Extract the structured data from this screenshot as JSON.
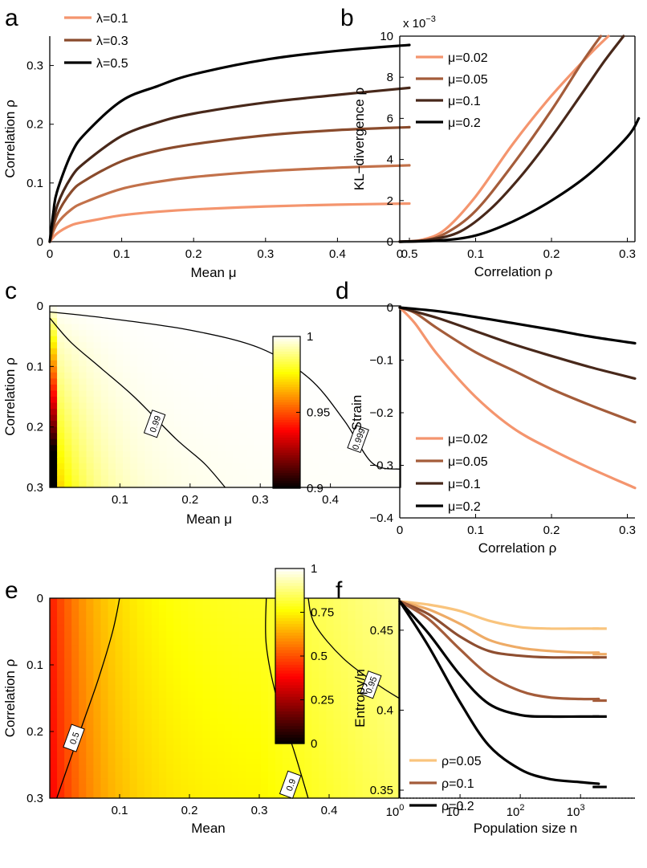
{
  "chart_data": [
    {
      "panel": "a",
      "type": "line",
      "xlabel": "Mean μ",
      "ylabel": "Correlation ρ",
      "xlim": [
        0,
        0.5
      ],
      "ylim": [
        0,
        0.35
      ],
      "xticks": [
        0,
        0.1,
        0.2,
        0.3,
        0.4,
        0.5
      ],
      "xtick_labels": [
        "0",
        "0.1",
        "0.2",
        "0.3",
        "0.4",
        "0.5"
      ],
      "yticks": [
        0,
        0.1,
        0.2,
        0.3
      ],
      "ytick_labels": [
        "0",
        "0.1",
        "0.2",
        "0.3"
      ],
      "legend": "top-left",
      "series": [
        {
          "name": "λ=0.1",
          "color": "#F4956E",
          "x": [
            0,
            0.01,
            0.03,
            0.05,
            0.1,
            0.15,
            0.2,
            0.3,
            0.4,
            0.5
          ],
          "y": [
            0,
            0.014,
            0.028,
            0.034,
            0.045,
            0.051,
            0.055,
            0.06,
            0.063,
            0.065
          ]
        },
        {
          "name": "",
          "color": "#C2714A",
          "x": [
            0,
            0.01,
            0.03,
            0.05,
            0.1,
            0.15,
            0.2,
            0.3,
            0.4,
            0.5
          ],
          "y": [
            0,
            0.03,
            0.055,
            0.068,
            0.09,
            0.102,
            0.11,
            0.12,
            0.126,
            0.13
          ]
        },
        {
          "name": "λ=0.3",
          "color": "#8A4B2C",
          "x": [
            0,
            0.01,
            0.03,
            0.05,
            0.1,
            0.15,
            0.2,
            0.3,
            0.4,
            0.5
          ],
          "y": [
            0,
            0.045,
            0.085,
            0.105,
            0.137,
            0.155,
            0.166,
            0.181,
            0.19,
            0.195
          ]
        },
        {
          "name": "",
          "color": "#48281A",
          "x": [
            0,
            0.01,
            0.03,
            0.05,
            0.1,
            0.15,
            0.2,
            0.3,
            0.4,
            0.5
          ],
          "y": [
            0,
            0.06,
            0.11,
            0.136,
            0.18,
            0.203,
            0.218,
            0.237,
            0.25,
            0.262
          ]
        },
        {
          "name": "λ=0.5",
          "color": "#000000",
          "x": [
            0,
            0.005,
            0.01,
            0.03,
            0.05,
            0.1,
            0.15,
            0.2,
            0.3,
            0.4,
            0.5
          ],
          "y": [
            0,
            0.05,
            0.085,
            0.15,
            0.185,
            0.24,
            0.265,
            0.285,
            0.31,
            0.325,
            0.335
          ]
        }
      ]
    },
    {
      "panel": "b",
      "type": "line",
      "xlabel": "Correlation ρ",
      "ylabel": "KL−divergence ρ",
      "scale_label": "x 10",
      "scale_exp": "−3",
      "xlim": [
        0,
        0.31
      ],
      "ylim": [
        0,
        10
      ],
      "xticks": [
        0,
        0.1,
        0.2,
        0.3
      ],
      "xtick_labels": [
        "0",
        "0.1",
        "0.2",
        "0.3"
      ],
      "yticks": [
        0,
        2,
        4,
        6,
        8,
        10
      ],
      "ytick_labels": [
        "0",
        "2",
        "4",
        "6",
        "8",
        "10"
      ],
      "legend": "top-left",
      "series": [
        {
          "name": "μ=0.02",
          "color": "#F4956E",
          "x": [
            0,
            0.03,
            0.06,
            0.1,
            0.15,
            0.2,
            0.25,
            0.275
          ],
          "y": [
            0,
            0.1,
            0.6,
            2.2,
            4.8,
            7.1,
            9.1,
            10
          ]
        },
        {
          "name": "μ=0.05",
          "color": "#A45C3A",
          "x": [
            0,
            0.03,
            0.06,
            0.1,
            0.15,
            0.2,
            0.24,
            0.265
          ],
          "y": [
            0,
            0.05,
            0.4,
            1.5,
            3.8,
            6.4,
            8.7,
            10
          ]
        },
        {
          "name": "μ=0.1",
          "color": "#48281A",
          "x": [
            0,
            0.04,
            0.08,
            0.12,
            0.16,
            0.2,
            0.24,
            0.27,
            0.295
          ],
          "y": [
            0,
            0.1,
            0.5,
            1.6,
            3.2,
            5.1,
            7.2,
            8.8,
            10
          ]
        },
        {
          "name": "μ=0.2",
          "color": "#000000",
          "x": [
            0,
            0.05,
            0.1,
            0.15,
            0.2,
            0.25,
            0.3,
            0.315
          ],
          "y": [
            0,
            0.05,
            0.3,
            1.0,
            2.0,
            3.3,
            5.1,
            6.0
          ]
        }
      ]
    },
    {
      "panel": "c",
      "type": "heatmap",
      "xlabel": "Mean μ",
      "ylabel": "Correlation ρ",
      "xlim": [
        0,
        0.5
      ],
      "ylim": [
        0,
        0.3
      ],
      "xticks": [
        0.1,
        0.2,
        0.3,
        0.4
      ],
      "xtick_labels": [
        "0.1",
        "0.2",
        "0.3",
        "0.4"
      ],
      "yticks": [
        0,
        0.1,
        0.2,
        0.3
      ],
      "ytick_labels": [
        "0",
        "0.1",
        "0.2",
        "0.3"
      ],
      "colorbar": {
        "min": 0.9,
        "max": 1,
        "ticks": [
          0.9,
          0.95,
          1
        ],
        "tick_labels": [
          "0.9",
          "0.95",
          "1"
        ]
      },
      "contours": [
        {
          "label": "0.99",
          "points": [
            [
              0.0,
              0.02
            ],
            [
              0.03,
              0.06
            ],
            [
              0.07,
              0.1
            ],
            [
              0.12,
              0.15
            ],
            [
              0.18,
              0.22
            ],
            [
              0.22,
              0.26
            ],
            [
              0.25,
              0.3
            ]
          ],
          "label_at": [
            0.15,
            0.195
          ]
        },
        {
          "label": "0.999",
          "points": [
            [
              0.0,
              0.01
            ],
            [
              0.08,
              0.02
            ],
            [
              0.2,
              0.04
            ],
            [
              0.3,
              0.07
            ],
            [
              0.37,
              0.12
            ],
            [
              0.42,
              0.19
            ],
            [
              0.46,
              0.26
            ],
            [
              0.5,
              0.27
            ]
          ],
          "label_at": [
            0.44,
            0.22
          ]
        }
      ]
    },
    {
      "panel": "d",
      "type": "line",
      "xlabel": "Correlation ρ",
      "ylabel": "Strain",
      "xlim": [
        0,
        0.31
      ],
      "ylim": [
        -0.4,
        0
      ],
      "xticks": [
        0,
        0.1,
        0.2,
        0.3
      ],
      "xtick_labels": [
        "0",
        "0.1",
        "0.2",
        "0.3"
      ],
      "yticks": [
        0,
        -0.1,
        -0.2,
        -0.3,
        -0.4
      ],
      "ytick_labels": [
        "0",
        "−0.1",
        "−0.2",
        "−0.3",
        "−0.4"
      ],
      "legend": "bottom-left",
      "series": [
        {
          "name": "μ=0.02",
          "color": "#F4956E",
          "x": [
            0,
            0.02,
            0.05,
            0.1,
            0.15,
            0.2,
            0.25,
            0.31
          ],
          "y": [
            0,
            -0.03,
            -0.09,
            -0.17,
            -0.23,
            -0.27,
            -0.305,
            -0.343
          ]
        },
        {
          "name": "μ=0.05",
          "color": "#A45C3A",
          "x": [
            0,
            0.02,
            0.05,
            0.1,
            0.15,
            0.2,
            0.25,
            0.31
          ],
          "y": [
            0,
            -0.01,
            -0.04,
            -0.085,
            -0.12,
            -0.155,
            -0.185,
            -0.218
          ]
        },
        {
          "name": "μ=0.1",
          "color": "#48281A",
          "x": [
            0,
            0.05,
            0.1,
            0.15,
            0.2,
            0.25,
            0.31
          ],
          "y": [
            0,
            -0.02,
            -0.045,
            -0.07,
            -0.092,
            -0.113,
            -0.135
          ]
        },
        {
          "name": "μ=0.2",
          "color": "#000000",
          "x": [
            0,
            0.05,
            0.1,
            0.15,
            0.2,
            0.25,
            0.31
          ],
          "y": [
            0,
            -0.007,
            -0.018,
            -0.03,
            -0.042,
            -0.055,
            -0.068
          ]
        }
      ]
    },
    {
      "panel": "e",
      "type": "heatmap",
      "xlabel": "Mean",
      "ylabel": "Correlation ρ",
      "xlim": [
        0,
        0.5
      ],
      "ylim": [
        0,
        0.3
      ],
      "xticks": [
        0.1,
        0.2,
        0.3,
        0.4
      ],
      "xtick_labels": [
        "0.1",
        "0.2",
        "0.3",
        "0.4"
      ],
      "yticks": [
        0,
        0.1,
        0.2,
        0.3
      ],
      "ytick_labels": [
        "0",
        "0.1",
        "0.2",
        "0.3"
      ],
      "colorbar": {
        "min": 0,
        "max": 1,
        "ticks": [
          0,
          0.25,
          0.5,
          0.75,
          1
        ],
        "tick_labels": [
          "0",
          "0.25",
          "0.5",
          "0.75",
          "1"
        ]
      },
      "contours": [
        {
          "label": "0.5",
          "points": [
            [
              0.1,
              0.0
            ],
            [
              0.09,
              0.05
            ],
            [
              0.07,
              0.12
            ],
            [
              0.05,
              0.18
            ],
            [
              0.03,
              0.24
            ],
            [
              0.01,
              0.3
            ]
          ],
          "label_at": [
            0.035,
            0.21
          ]
        },
        {
          "label": "0.9",
          "points": [
            [
              0.31,
              0.0
            ],
            [
              0.31,
              0.07
            ],
            [
              0.325,
              0.15
            ],
            [
              0.35,
              0.23
            ],
            [
              0.37,
              0.3
            ]
          ],
          "label_at": [
            0.345,
            0.28
          ]
        },
        {
          "label": "0.95",
          "points": [
            [
              0.37,
              0.0
            ],
            [
              0.38,
              0.04
            ],
            [
              0.42,
              0.09
            ],
            [
              0.47,
              0.13
            ],
            [
              0.5,
              0.15
            ]
          ],
          "label_at": [
            0.46,
            0.13
          ]
        }
      ]
    },
    {
      "panel": "f",
      "type": "line",
      "xlabel": "Population size n",
      "ylabel": "Entropy/n",
      "xscale": "log",
      "xlim": [
        1,
        8000
      ],
      "ylim": [
        0.345,
        0.47
      ],
      "xticks": [
        1,
        10,
        100,
        1000
      ],
      "xtick_labels": [
        "10",
        "10",
        "10",
        "10"
      ],
      "xtick_exps": [
        "0",
        "1",
        "2",
        "3"
      ],
      "yticks": [
        0.35,
        0.4,
        0.45
      ],
      "ytick_labels": [
        "0.35",
        "0.4",
        "0.45"
      ],
      "legend": "bottom-left",
      "series": [
        {
          "name": "ρ=0.05",
          "color": "#F9C47D",
          "x": [
            1,
            3,
            10,
            30,
            100,
            300,
            1000,
            2000
          ],
          "y": [
            0.468,
            0.466,
            0.462,
            0.456,
            0.452,
            0.451,
            0.451,
            0.451
          ],
          "limit": 0.451
        },
        {
          "name": "",
          "color": "#EEAB66",
          "x": [
            1,
            3,
            10,
            30,
            100,
            300,
            1000,
            2000
          ],
          "y": [
            0.468,
            0.463,
            0.454,
            0.444,
            0.439,
            0.437,
            0.436,
            0.436
          ],
          "limit": 0.435
        },
        {
          "name": "",
          "color": "#8E4E30",
          "x": [
            1,
            3,
            10,
            30,
            100,
            300,
            1000,
            2000
          ],
          "y": [
            0.468,
            0.46,
            0.446,
            0.437,
            0.434,
            0.433,
            0.433,
            0.433
          ],
          "limit": 0.433
        },
        {
          "name": "ρ=0.1",
          "color": "#A45C3A",
          "x": [
            1,
            3,
            10,
            30,
            100,
            300,
            1000,
            2000
          ],
          "y": [
            0.468,
            0.457,
            0.438,
            0.422,
            0.412,
            0.408,
            0.407,
            0.407
          ],
          "limit": 0.406
        },
        {
          "name": "",
          "color": "#000000",
          "x": [
            1,
            3,
            10,
            30,
            100,
            300,
            1000,
            2000
          ],
          "y": [
            0.468,
            0.448,
            0.422,
            0.404,
            0.397,
            0.396,
            0.396,
            0.396
          ],
          "limit": 0.396
        },
        {
          "name": "ρ=0.2",
          "color": "#000000",
          "x": [
            1,
            3,
            10,
            30,
            100,
            300,
            1000,
            2000
          ],
          "y": [
            0.468,
            0.44,
            0.405,
            0.378,
            0.363,
            0.357,
            0.355,
            0.354
          ],
          "limit": 0.352
        }
      ]
    }
  ],
  "panel_letters": [
    "a",
    "b",
    "c",
    "d",
    "e",
    "f"
  ]
}
